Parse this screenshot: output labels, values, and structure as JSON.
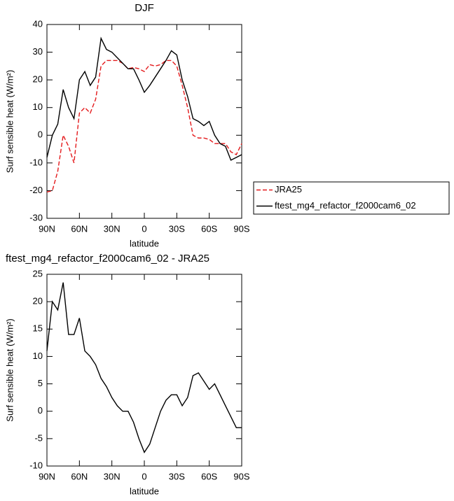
{
  "chart_data": [
    {
      "type": "line",
      "title": "DJF",
      "xlabel": "latitude",
      "ylabel": "Surf sensible heat (W/m²)",
      "x": [
        90,
        85,
        80,
        75,
        70,
        65,
        60,
        55,
        50,
        45,
        40,
        35,
        30,
        25,
        20,
        15,
        10,
        5,
        0,
        -5,
        -10,
        -15,
        -20,
        -25,
        -30,
        -35,
        -40,
        -45,
        -50,
        -55,
        -60,
        -65,
        -70,
        -75,
        -80,
        -85,
        -90
      ],
      "series": [
        {
          "name": "JRA25",
          "color": "#e41a1c",
          "linestyle": "dashed",
          "values": [
            -20.5,
            -20,
            -13,
            0,
            -4,
            -10,
            8,
            10,
            8,
            13,
            25,
            27,
            27,
            27,
            26,
            24,
            24.5,
            24,
            23,
            25.5,
            25,
            25.5,
            27,
            27,
            25,
            18,
            10,
            0,
            -1,
            -1,
            -1.5,
            -3,
            -3,
            -3,
            -6,
            -7,
            -3
          ]
        },
        {
          "name": "ftest_mg4_refactor_f2000cam6_02",
          "color": "#000000",
          "linestyle": "solid",
          "values": [
            -8,
            0,
            4,
            16.5,
            10,
            6,
            20,
            23,
            18,
            21,
            35,
            31,
            30,
            28,
            26,
            24,
            24,
            20,
            15.5,
            18,
            21,
            24,
            27,
            30.5,
            29,
            20,
            14,
            6,
            5,
            3.5,
            5,
            0,
            -3,
            -4,
            -9,
            -8,
            -7
          ]
        }
      ],
      "xlim": [
        90,
        -90
      ],
      "xticks": [
        {
          "value": 90,
          "label": "90N"
        },
        {
          "value": 60,
          "label": "60N"
        },
        {
          "value": 30,
          "label": "30N"
        },
        0,
        {
          "value": -30,
          "label": "30S"
        },
        {
          "value": -60,
          "label": "60S"
        },
        {
          "value": -90,
          "label": "90S"
        }
      ],
      "ylim": [
        -30,
        40
      ],
      "yticks": [
        -30,
        -20,
        -10,
        0,
        10,
        20,
        30,
        40
      ],
      "legend": "outside-right"
    },
    {
      "type": "line",
      "title": "ftest_mg4_refactor_f2000cam6_02 - JRA25",
      "xlabel": "latitude",
      "ylabel": "Surf sensible heat (W/m²)",
      "x": [
        90,
        85,
        80,
        75,
        70,
        65,
        60,
        55,
        50,
        45,
        40,
        35,
        30,
        25,
        20,
        15,
        10,
        5,
        0,
        -5,
        -10,
        -15,
        -20,
        -25,
        -30,
        -35,
        -40,
        -45,
        -50,
        -55,
        -60,
        -65,
        -70,
        -75,
        -80,
        -85,
        -90
      ],
      "values": [
        11,
        20,
        18.5,
        23.5,
        14,
        14,
        17,
        11,
        10,
        8.5,
        6,
        4.5,
        2.5,
        1,
        0,
        0,
        -2,
        -5,
        -7.5,
        -6,
        -3,
        0,
        2,
        3,
        3,
        1,
        2.5,
        6.5,
        7,
        5.5,
        4,
        5,
        3,
        1,
        -1,
        -3,
        -3
      ],
      "color": "#000000",
      "xlim": [
        90,
        -90
      ],
      "xticks": [
        {
          "value": 90,
          "label": "90N"
        },
        {
          "value": 60,
          "label": "60N"
        },
        {
          "value": 30,
          "label": "30N"
        },
        0,
        {
          "value": -30,
          "label": "30S"
        },
        {
          "value": -60,
          "label": "60S"
        },
        {
          "value": -90,
          "label": "90S"
        }
      ],
      "ylim": [
        -10,
        25
      ],
      "yticks": [
        -10,
        -5,
        0,
        5,
        10,
        15,
        20,
        25
      ]
    }
  ]
}
